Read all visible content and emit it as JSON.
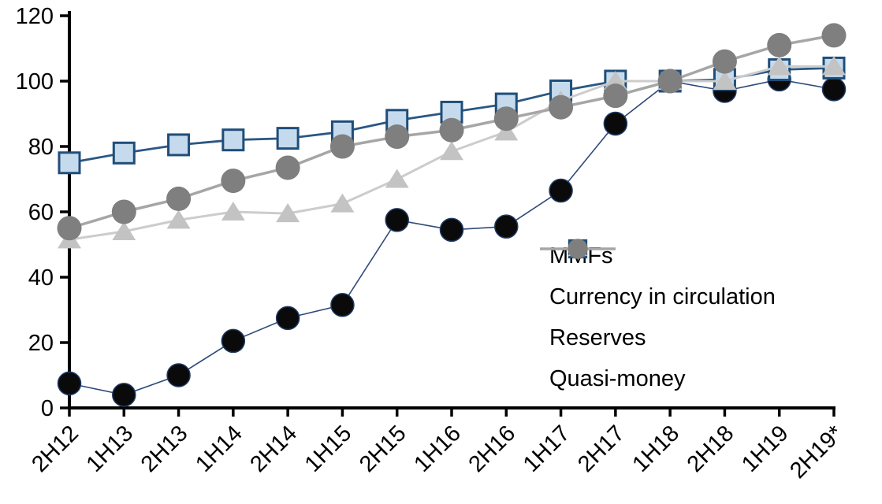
{
  "chart_data": {
    "type": "line",
    "title": "",
    "xlabel": "",
    "ylabel": "",
    "categories": [
      "2H12",
      "1H13",
      "2H13",
      "1H14",
      "2H14",
      "1H15",
      "2H15",
      "1H16",
      "2H16",
      "1H17",
      "2H17",
      "1H18",
      "2H18",
      "1H19",
      "2H19*"
    ],
    "series": [
      {
        "name": "MMFs",
        "marker": "circle",
        "marker_fill": "#0a0a0a",
        "marker_stroke": "#1f3864",
        "line_color": "#2e4a7a",
        "line_width": 1.6,
        "marker_size": 14.5,
        "values": [
          7.5,
          4,
          10,
          20.5,
          27.5,
          31.5,
          57.5,
          54.5,
          55.5,
          66.5,
          87,
          100,
          97,
          100.5,
          97.5
        ]
      },
      {
        "name": "Currency in circulation",
        "marker": "square",
        "marker_fill": "#c5dbed",
        "marker_stroke": "#1f4e79",
        "line_color": "#2a5783",
        "line_width": 2.8,
        "marker_size": 13,
        "values": [
          75,
          78,
          80.5,
          82,
          82.5,
          84.5,
          88,
          90.5,
          93,
          97,
          100,
          100,
          100.5,
          103.5,
          104
        ]
      },
      {
        "name": "Reserves",
        "marker": "triangle",
        "marker_fill": "#c3c3c3",
        "marker_stroke": "none",
        "line_color": "#cccccc",
        "line_width": 3,
        "marker_size": 14,
        "values": [
          51.5,
          54,
          57.5,
          60,
          59.5,
          62.5,
          70,
          78.5,
          84.5,
          94,
          100,
          100,
          100,
          104.5,
          104.5
        ]
      },
      {
        "name": "Quasi-money",
        "marker": "circle",
        "marker_fill": "#7f7f7f",
        "marker_stroke": "none",
        "line_color": "#a6a6a6",
        "line_width": 3.5,
        "marker_size": 15.5,
        "values": [
          55,
          60,
          64,
          69.5,
          73.5,
          80,
          83,
          85,
          88.5,
          92,
          95.5,
          100,
          106,
          111,
          114
        ]
      }
    ],
    "y_axis": {
      "min": 0,
      "max": 120,
      "tick_step": 20,
      "ticks": [
        0,
        20,
        40,
        60,
        80,
        100,
        120
      ]
    },
    "x_axis": {
      "label_rotation_deg": 45
    },
    "grid": "off",
    "legend_position": "inset-right",
    "axis_color": "#000000",
    "background_color": "#ffffff"
  }
}
